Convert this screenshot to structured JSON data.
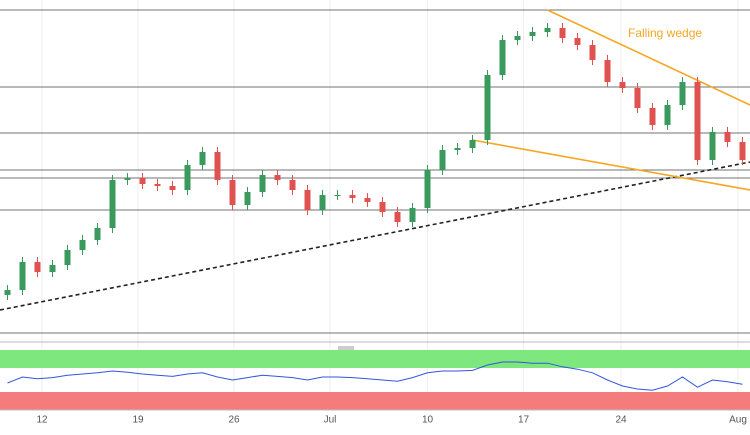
{
  "chart_data": {
    "type": "candlestick",
    "annotation": "Falling wedge",
    "xlim": [
      0,
      50
    ],
    "ylim": [
      0,
      340
    ],
    "open": [
      45,
      50,
      78,
      68,
      75,
      90,
      100,
      112,
      160,
      162,
      156,
      154,
      150,
      175,
      188,
      160,
      135,
      148,
      165,
      160,
      150,
      130,
      145,
      145,
      142,
      138,
      128,
      118,
      132,
      170,
      190,
      192,
      200,
      265,
      300,
      304,
      308,
      312,
      302,
      295,
      280,
      258,
      252,
      232,
      215,
      235,
      258,
      180,
      208,
      198
    ],
    "high": [
      55,
      83,
      83,
      80,
      95,
      105,
      117,
      165,
      167,
      167,
      161,
      159,
      180,
      193,
      193,
      165,
      153,
      170,
      170,
      165,
      155,
      150,
      150,
      150,
      147,
      143,
      133,
      137,
      175,
      195,
      197,
      205,
      270,
      305,
      309,
      313,
      317,
      317,
      307,
      300,
      285,
      263,
      257,
      237,
      240,
      263,
      263,
      213,
      213,
      203
    ],
    "low": [
      40,
      45,
      63,
      63,
      70,
      85,
      95,
      107,
      155,
      151,
      149,
      145,
      145,
      170,
      155,
      130,
      130,
      143,
      155,
      145,
      125,
      125,
      140,
      137,
      133,
      123,
      113,
      113,
      127,
      165,
      185,
      187,
      195,
      260,
      295,
      299,
      303,
      297,
      290,
      275,
      253,
      247,
      227,
      210,
      210,
      230,
      175,
      175,
      193,
      175
    ],
    "close": [
      50,
      78,
      68,
      75,
      90,
      100,
      112,
      160,
      162,
      156,
      154,
      150,
      175,
      188,
      160,
      135,
      148,
      165,
      160,
      150,
      130,
      145,
      145,
      142,
      138,
      128,
      118,
      132,
      170,
      190,
      192,
      200,
      265,
      300,
      304,
      308,
      312,
      302,
      295,
      280,
      258,
      252,
      232,
      215,
      235,
      258,
      180,
      208,
      198,
      180
    ],
    "up_color": "#3a9a5c",
    "down_color": "#e0524f",
    "levels": [
      330,
      253,
      207,
      170,
      162,
      130,
      7
    ],
    "wedge_color": "#f5a623",
    "wedge_upper": {
      "x": [
        36.5,
        50
      ],
      "y": [
        330,
        235
      ]
    },
    "wedge_lower": {
      "x": [
        31.5,
        50
      ],
      "y": [
        200,
        150
      ]
    },
    "support": {
      "x": [
        0,
        50
      ],
      "y": [
        30,
        178
      ]
    },
    "xticks": [
      {
        "value": 2.8,
        "label": "12"
      },
      {
        "value": 9.2,
        "label": "19"
      },
      {
        "value": 15.6,
        "label": "26"
      },
      {
        "value": 22,
        "label": "Jul"
      },
      {
        "value": 28.5,
        "label": "10"
      },
      {
        "value": 34.9,
        "label": "17"
      },
      {
        "value": 41.4,
        "label": "24"
      },
      {
        "value": 49.2,
        "label": "Aug"
      }
    ],
    "rsi": {
      "ylim": [
        0,
        100
      ],
      "overbought": 70,
      "oversold": 30,
      "color": "#3355dd",
      "values": [
        45,
        55,
        52,
        54,
        58,
        60,
        62,
        65,
        63,
        60,
        58,
        56,
        60,
        62,
        55,
        50,
        54,
        58,
        56,
        54,
        50,
        55,
        55,
        54,
        52,
        50,
        48,
        54,
        62,
        65,
        65,
        66,
        75,
        80,
        80,
        78,
        78,
        72,
        68,
        62,
        50,
        40,
        35,
        33,
        40,
        55,
        38,
        50,
        47,
        43
      ]
    }
  }
}
